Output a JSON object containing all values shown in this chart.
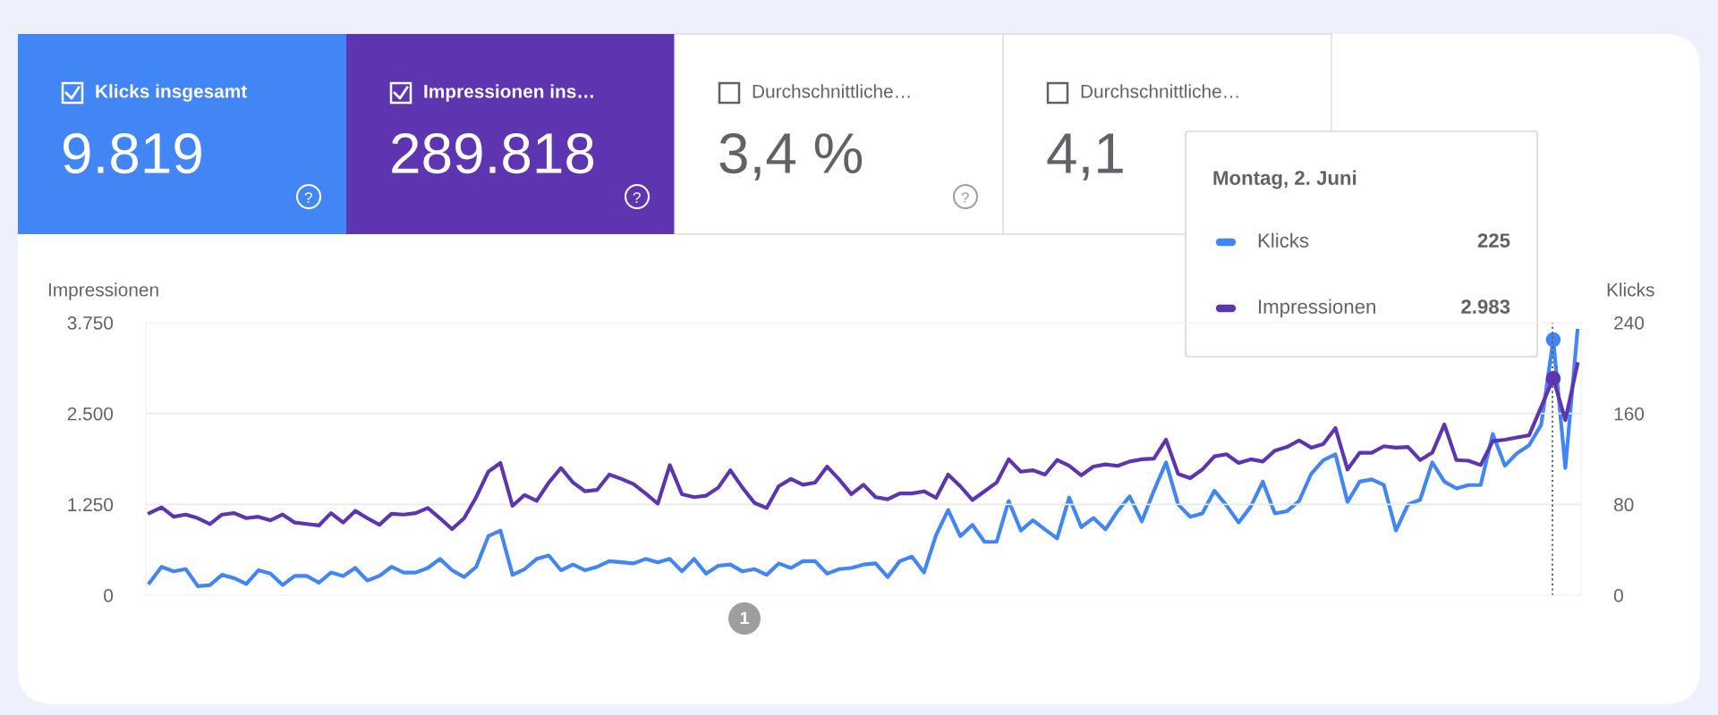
{
  "chart_data": [
    {
      "type": "other",
      "annotations": [
        "Klicks insgesamt",
        "9.819",
        "Impressionen ins…",
        "289.818",
        "Durchschnittliche…",
        "3,4 %",
        "Durchschnittliche…",
        "4,1"
      ],
      "colors": [
        "#4285f4",
        "#5e35b1",
        null,
        null
      ]
    },
    {
      "type": "line",
      "ylabel": "Impressionen",
      "y2label": "Klicks",
      "categories": [
        null,
        null,
        null,
        null,
        null,
        null,
        null,
        null,
        null,
        null,
        null,
        null,
        null,
        null,
        null,
        null,
        null,
        null,
        null,
        null,
        null,
        null,
        null,
        null,
        null,
        null,
        null,
        null,
        null,
        null,
        null,
        null,
        null,
        null,
        null,
        null,
        null,
        null,
        null,
        null,
        null,
        null,
        null,
        null,
        null,
        null,
        null,
        null,
        null,
        null,
        null,
        null,
        null,
        null,
        null,
        null,
        null,
        null,
        null,
        null,
        null,
        null,
        null,
        null,
        null,
        null,
        null,
        null,
        null,
        null,
        null,
        null,
        null,
        null,
        null,
        null,
        null,
        null,
        null,
        null,
        null,
        null,
        null,
        null,
        null,
        null,
        null,
        null,
        null,
        null,
        null,
        null,
        null,
        null,
        null,
        null,
        null,
        null,
        null,
        null,
        null,
        null,
        null,
        null,
        null,
        null,
        null,
        null,
        null,
        null,
        null,
        null,
        null,
        null,
        null,
        null,
        null,
        null,
        null
      ],
      "series": [
        {
          "name": "Klicks",
          "color": "#4285f4",
          "axis": "y2",
          "values": [
            11,
            25,
            21,
            23,
            8,
            9,
            18,
            15,
            10,
            22,
            19,
            9,
            17,
            17,
            11,
            20,
            17,
            24,
            13,
            17,
            25,
            20,
            20,
            24,
            32,
            22,
            16,
            25,
            52,
            57,
            18,
            23,
            32,
            35,
            22,
            27,
            22,
            25,
            30,
            29,
            28,
            32,
            29,
            32,
            21,
            32,
            19,
            26,
            27,
            21,
            23,
            18,
            28,
            24,
            30,
            30,
            19,
            23,
            24,
            27,
            28,
            16,
            30,
            34,
            20,
            53,
            75,
            52,
            62,
            47,
            47,
            83,
            57,
            66,
            58,
            50,
            86,
            60,
            68,
            58,
            74,
            87,
            65,
            92,
            117,
            80,
            69,
            72,
            92,
            79,
            64,
            78,
            100,
            72,
            74,
            83,
            107,
            119,
            124,
            82,
            100,
            102,
            97,
            57,
            80,
            84,
            117,
            100,
            94,
            97,
            97,
            142,
            114,
            125,
            132,
            150,
            225,
            112,
            233
          ]
        },
        {
          "name": "Impressionen",
          "color": "#5e35b1",
          "axis": "y",
          "values": [
            1130,
            1210,
            1080,
            1110,
            1060,
            980,
            1110,
            1130,
            1060,
            1080,
            1030,
            1110,
            1000,
            980,
            960,
            1130,
            1000,
            1160,
            1060,
            970,
            1120,
            1110,
            1130,
            1200,
            1060,
            910,
            1060,
            1350,
            1700,
            1820,
            1230,
            1380,
            1300,
            1550,
            1750,
            1550,
            1430,
            1450,
            1660,
            1600,
            1530,
            1400,
            1260,
            1790,
            1390,
            1350,
            1370,
            1480,
            1720,
            1480,
            1270,
            1200,
            1500,
            1600,
            1520,
            1550,
            1770,
            1590,
            1390,
            1520,
            1350,
            1320,
            1400,
            1400,
            1430,
            1340,
            1660,
            1500,
            1310,
            1430,
            1550,
            1870,
            1700,
            1720,
            1660,
            1860,
            1780,
            1650,
            1770,
            1800,
            1780,
            1840,
            1870,
            1880,
            2140,
            1670,
            1610,
            1730,
            1910,
            1940,
            1820,
            1870,
            1840,
            1990,
            2040,
            2130,
            2030,
            2080,
            2300,
            1730,
            1960,
            1960,
            2050,
            2030,
            2040,
            1860,
            1960,
            2350,
            1860,
            1850,
            1790,
            2120,
            2140,
            2170,
            2200,
            2590,
            2983,
            2410,
            3180
          ]
        }
      ],
      "ylim": [
        0,
        3750
      ],
      "yticks": [
        {
          "value": 0,
          "label": "0"
        },
        {
          "value": 1250,
          "label": "1.250"
        },
        {
          "value": 2500,
          "label": "2.500"
        },
        {
          "value": 3750,
          "label": "3.750"
        }
      ],
      "y2lim": [
        0,
        240
      ],
      "y2ticks": [
        0,
        80,
        160,
        240
      ],
      "grid": "y",
      "legend": "top right",
      "line_style": "solid",
      "annotations": [
        "Montag, 2. Juni",
        "225",
        "2.983",
        "1"
      ]
    }
  ]
}
